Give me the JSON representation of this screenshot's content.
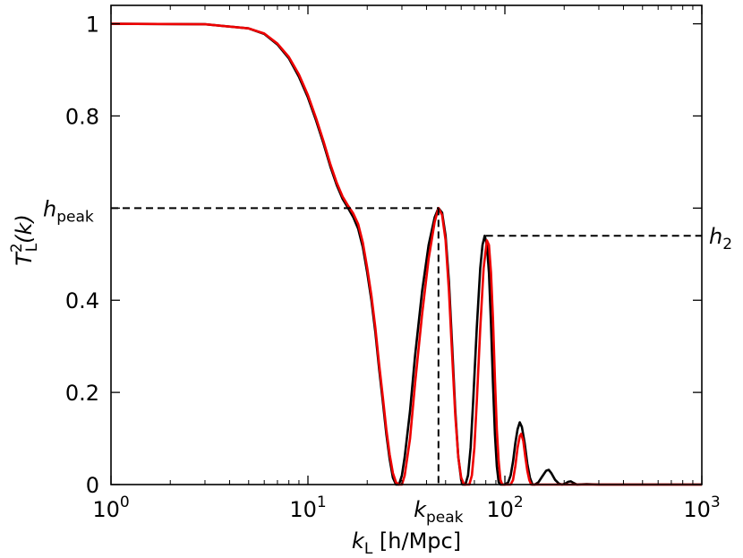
{
  "chart_data": {
    "type": "line",
    "xlabel": {
      "main": "k",
      "sub": "L",
      "rest": " [h/Mpc]"
    },
    "ylabel": {
      "main": "T",
      "sup": "2",
      "sub": "L",
      "rest": "(k)"
    },
    "xscale": "log",
    "xlim": [
      1,
      1000
    ],
    "ylim": [
      0,
      1.04
    ],
    "x_ticks": [
      {
        "value": 1,
        "base": "10",
        "exp": "0"
      },
      {
        "value": 10,
        "base": "10",
        "exp": "1"
      },
      {
        "value": 100,
        "base": "10",
        "exp": "2"
      },
      {
        "value": 1000,
        "base": "10",
        "exp": "3"
      }
    ],
    "y_ticks": [
      {
        "value": 0,
        "label": "0"
      },
      {
        "value": 0.2,
        "label": "0.2"
      },
      {
        "value": 0.4,
        "label": "0.4"
      },
      {
        "value": 0.8,
        "label": "0.8"
      },
      {
        "value": 1,
        "label": "1"
      }
    ],
    "y_tick_marks": [
      0,
      0.2,
      0.4,
      0.6,
      0.8,
      1.0
    ],
    "grid": false,
    "series": [
      {
        "color": "#000000",
        "points": [
          [
            1,
            1
          ],
          [
            3,
            0.999
          ],
          [
            5,
            0.99
          ],
          [
            6,
            0.978
          ],
          [
            7,
            0.955
          ],
          [
            8,
            0.925
          ],
          [
            9,
            0.885
          ],
          [
            10,
            0.84
          ],
          [
            11,
            0.79
          ],
          [
            12,
            0.74
          ],
          [
            13,
            0.69
          ],
          [
            14,
            0.65
          ],
          [
            15,
            0.62
          ],
          [
            16,
            0.6
          ],
          [
            17,
            0.58
          ],
          [
            18,
            0.555
          ],
          [
            19,
            0.515
          ],
          [
            20,
            0.46
          ],
          [
            21,
            0.4
          ],
          [
            22,
            0.33
          ],
          [
            23,
            0.25
          ],
          [
            24,
            0.18
          ],
          [
            25,
            0.11
          ],
          [
            26,
            0.055
          ],
          [
            27,
            0.015
          ],
          [
            28,
            0.0
          ],
          [
            29,
            0.0
          ],
          [
            30,
            0.02
          ],
          [
            31,
            0.06
          ],
          [
            33,
            0.16
          ],
          [
            35,
            0.28
          ],
          [
            38,
            0.42
          ],
          [
            41,
            0.52
          ],
          [
            44,
            0.58
          ],
          [
            46,
            0.6
          ],
          [
            48,
            0.59
          ],
          [
            50,
            0.54
          ],
          [
            52,
            0.44
          ],
          [
            54,
            0.3
          ],
          [
            56,
            0.16
          ],
          [
            58,
            0.06
          ],
          [
            60,
            0.01
          ],
          [
            61,
            0.0
          ],
          [
            63,
            0.0
          ],
          [
            65,
            0.02
          ],
          [
            67,
            0.08
          ],
          [
            69,
            0.18
          ],
          [
            72,
            0.34
          ],
          [
            75,
            0.47
          ],
          [
            77,
            0.52
          ],
          [
            79,
            0.54
          ],
          [
            81,
            0.52
          ],
          [
            83,
            0.46
          ],
          [
            85,
            0.35
          ],
          [
            87,
            0.22
          ],
          [
            89,
            0.11
          ],
          [
            91,
            0.04
          ],
          [
            93,
            0.005
          ],
          [
            95,
            0.0
          ],
          [
            100,
            0.0
          ],
          [
            104,
            0.005
          ],
          [
            107,
            0.02
          ],
          [
            110,
            0.05
          ],
          [
            113,
            0.09
          ],
          [
            116,
            0.12
          ],
          [
            119,
            0.135
          ],
          [
            122,
            0.125
          ],
          [
            126,
            0.09
          ],
          [
            130,
            0.045
          ],
          [
            134,
            0.015
          ],
          [
            138,
            0.0
          ],
          [
            142,
            0.0
          ],
          [
            148,
            0.005
          ],
          [
            155,
            0.018
          ],
          [
            162,
            0.03
          ],
          [
            167,
            0.032
          ],
          [
            172,
            0.025
          ],
          [
            180,
            0.01
          ],
          [
            188,
            0.002
          ],
          [
            195,
            0.0
          ],
          [
            202,
            0.002
          ],
          [
            210,
            0.006
          ],
          [
            216,
            0.007
          ],
          [
            222,
            0.004
          ],
          [
            232,
            0.0
          ],
          [
            260,
            0.001
          ],
          [
            300,
            0.0
          ],
          [
            1000,
            0.0
          ]
        ]
      },
      {
        "color": "#ee0000",
        "points": [
          [
            1,
            1
          ],
          [
            3,
            0.999
          ],
          [
            5,
            0.99
          ],
          [
            6,
            0.979
          ],
          [
            7,
            0.957
          ],
          [
            8,
            0.928
          ],
          [
            9,
            0.89
          ],
          [
            10,
            0.845
          ],
          [
            11,
            0.795
          ],
          [
            12,
            0.745
          ],
          [
            13,
            0.695
          ],
          [
            14,
            0.655
          ],
          [
            15,
            0.625
          ],
          [
            16,
            0.605
          ],
          [
            17,
            0.588
          ],
          [
            18,
            0.565
          ],
          [
            19,
            0.525
          ],
          [
            20,
            0.47
          ],
          [
            21,
            0.41
          ],
          [
            22,
            0.34
          ],
          [
            23,
            0.26
          ],
          [
            24,
            0.19
          ],
          [
            25,
            0.12
          ],
          [
            26,
            0.065
          ],
          [
            27,
            0.025
          ],
          [
            28,
            0.005
          ],
          [
            29,
            0.0
          ],
          [
            30,
            0.0
          ],
          [
            31,
            0.02
          ],
          [
            33,
            0.1
          ],
          [
            35,
            0.22
          ],
          [
            38,
            0.37
          ],
          [
            41,
            0.49
          ],
          [
            44,
            0.57
          ],
          [
            46,
            0.6
          ],
          [
            48,
            0.585
          ],
          [
            50,
            0.53
          ],
          [
            52,
            0.42
          ],
          [
            54,
            0.28
          ],
          [
            56,
            0.15
          ],
          [
            58,
            0.06
          ],
          [
            60,
            0.015
          ],
          [
            62,
            0.0
          ],
          [
            66,
            0.0
          ],
          [
            68,
            0.02
          ],
          [
            70,
            0.08
          ],
          [
            72,
            0.18
          ],
          [
            75,
            0.34
          ],
          [
            78,
            0.47
          ],
          [
            81,
            0.53
          ],
          [
            83,
            0.52
          ],
          [
            85,
            0.46
          ],
          [
            87,
            0.36
          ],
          [
            89,
            0.23
          ],
          [
            91,
            0.12
          ],
          [
            93,
            0.05
          ],
          [
            95,
            0.01
          ],
          [
            97,
            0.0
          ],
          [
            107,
            0.0
          ],
          [
            110,
            0.01
          ],
          [
            113,
            0.04
          ],
          [
            116,
            0.08
          ],
          [
            119,
            0.105
          ],
          [
            121,
            0.11
          ],
          [
            124,
            0.095
          ],
          [
            127,
            0.06
          ],
          [
            130,
            0.03
          ],
          [
            133,
            0.01
          ],
          [
            136,
            0.0
          ],
          [
            300,
            0.0
          ],
          [
            1000,
            0.0
          ]
        ]
      }
    ],
    "annotations": {
      "h_peak": {
        "main": "h",
        "sub": "peak",
        "y": 0.6,
        "x_end": 46
      },
      "h_2": {
        "main": "h",
        "sub": "2",
        "y": 0.54,
        "x_start": 80
      },
      "k_peak": {
        "main": "k",
        "sub": "peak",
        "x": 46,
        "y_top": 0.6
      }
    }
  }
}
